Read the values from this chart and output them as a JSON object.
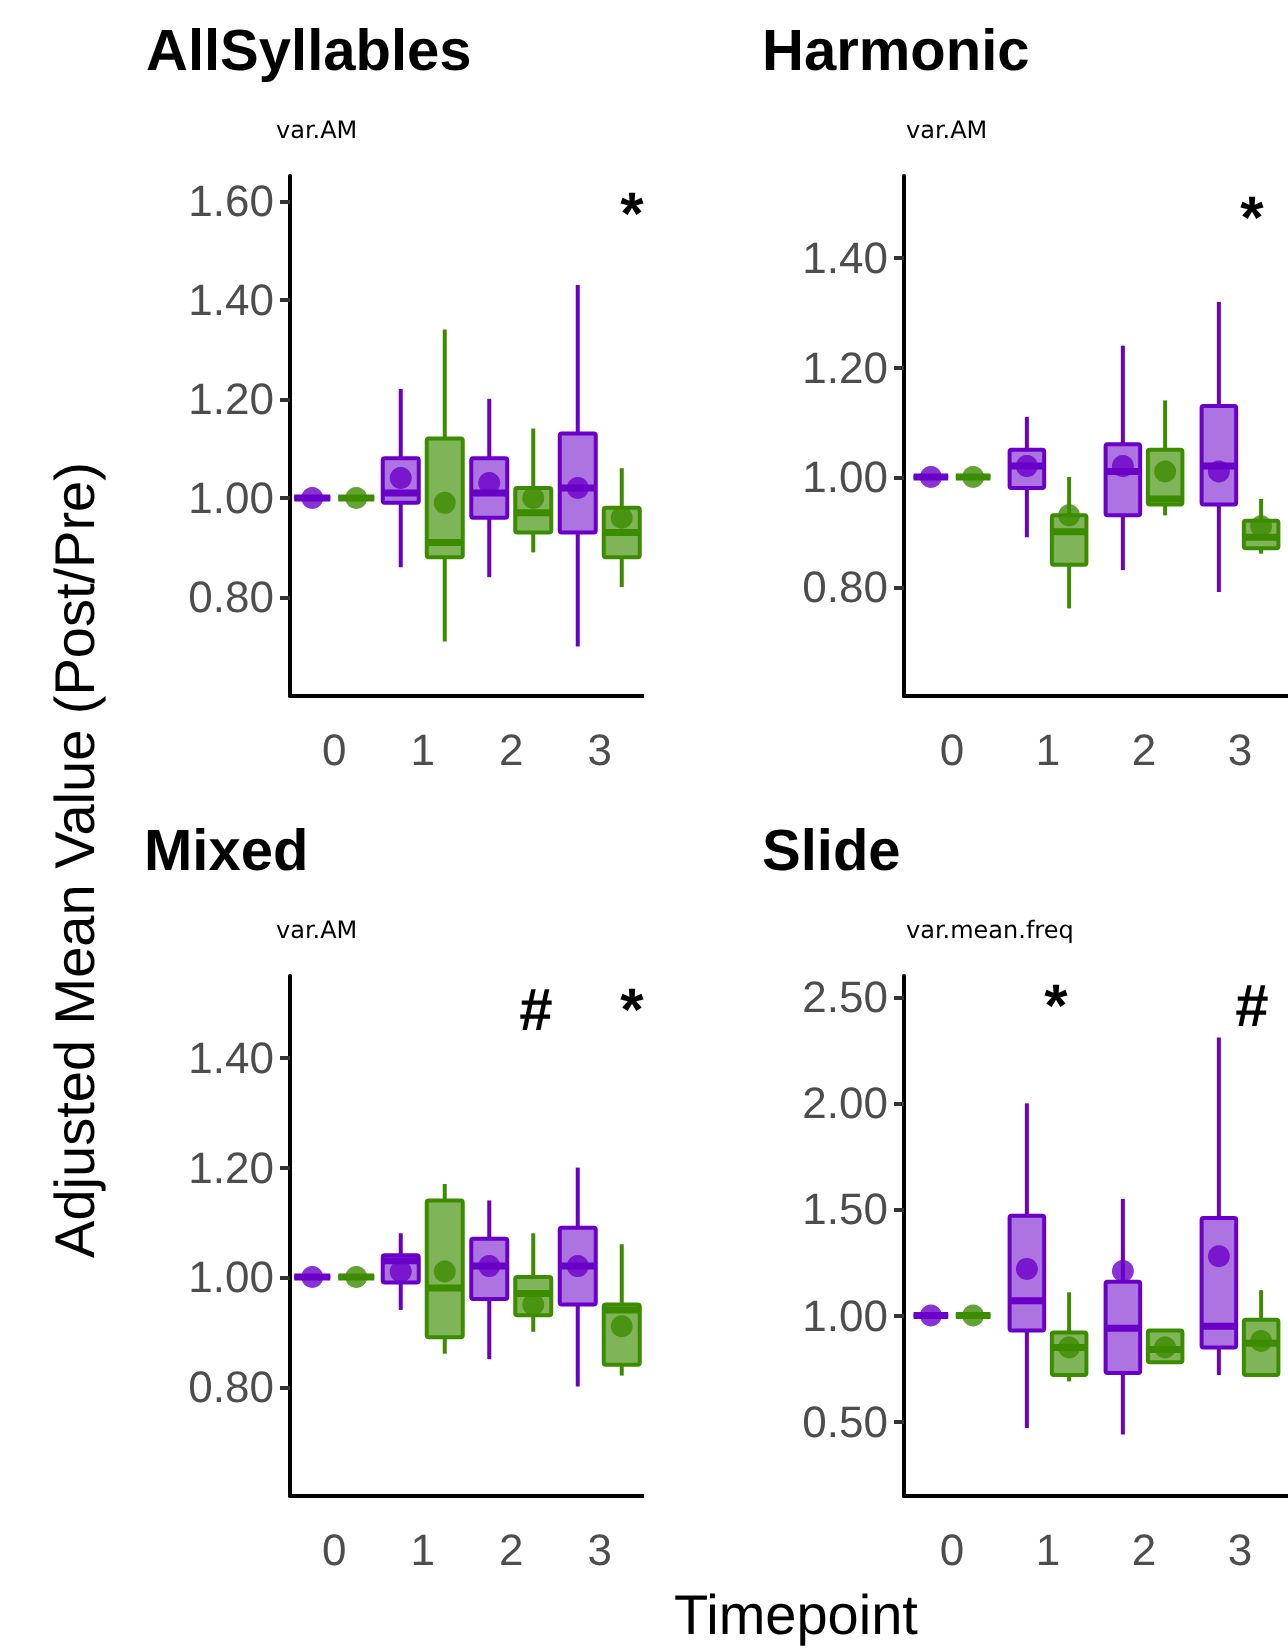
{
  "chart_data": [
    {
      "type": "box",
      "title": "AllSyllables",
      "subtitle": "var.AM",
      "ylabel": "Adjusted Mean Value (Post/Pre)",
      "categories": [
        "0",
        "1",
        "2",
        "3"
      ],
      "ylim": [
        0.6,
        1.65
      ],
      "yticks": [
        {
          "value": 0.8,
          "label": "0.80"
        },
        {
          "value": 1.0,
          "label": "1.00"
        },
        {
          "value": 1.2,
          "label": "1.20"
        },
        {
          "value": 1.4,
          "label": "1.40"
        },
        {
          "value": 1.6,
          "label": "1.60"
        }
      ],
      "grid": false,
      "series": [
        {
          "color": "#6a00c8",
          "boxes": [
            {
              "low": 1.0,
              "q1": 1.0,
              "median": 1.0,
              "q3": 1.0,
              "high": 1.0,
              "mean": 1.0
            },
            {
              "low": 0.86,
              "q1": 0.99,
              "median": 1.01,
              "q3": 1.08,
              "high": 1.22,
              "mean": 1.04
            },
            {
              "low": 0.84,
              "q1": 0.96,
              "median": 1.01,
              "q3": 1.08,
              "high": 1.2,
              "mean": 1.03
            },
            {
              "low": 0.7,
              "q1": 0.93,
              "median": 1.02,
              "q3": 1.13,
              "high": 1.43,
              "mean": 1.02
            }
          ]
        },
        {
          "color": "#3c8c00",
          "boxes": [
            {
              "low": 1.0,
              "q1": 1.0,
              "median": 1.0,
              "q3": 1.0,
              "high": 1.0,
              "mean": 1.0
            },
            {
              "low": 0.71,
              "q1": 0.88,
              "median": 0.91,
              "q3": 1.12,
              "high": 1.34,
              "mean": 0.99
            },
            {
              "low": 0.89,
              "q1": 0.93,
              "median": 0.97,
              "q3": 1.02,
              "high": 1.14,
              "mean": 1.0
            },
            {
              "low": 0.82,
              "q1": 0.88,
              "median": 0.93,
              "q3": 0.98,
              "high": 1.06,
              "mean": 0.96
            }
          ]
        }
      ],
      "annotations": [
        "*"
      ]
    },
    {
      "type": "box",
      "title": "Harmonic",
      "subtitle": "var.AM",
      "categories": [
        "0",
        "1",
        "2",
        "3"
      ],
      "ylim": [
        0.6,
        1.55
      ],
      "yticks": [
        {
          "value": 0.8,
          "label": "0.80"
        },
        {
          "value": 1.0,
          "label": "1.00"
        },
        {
          "value": 1.2,
          "label": "1.20"
        },
        {
          "value": 1.4,
          "label": "1.40"
        }
      ],
      "grid": false,
      "series": [
        {
          "color": "#6a00c8",
          "boxes": [
            {
              "low": 1.0,
              "q1": 1.0,
              "median": 1.0,
              "q3": 1.0,
              "high": 1.0,
              "mean": 1.0
            },
            {
              "low": 0.89,
              "q1": 0.98,
              "median": 1.02,
              "q3": 1.05,
              "high": 1.11,
              "mean": 1.02
            },
            {
              "low": 0.83,
              "q1": 0.93,
              "median": 1.01,
              "q3": 1.06,
              "high": 1.24,
              "mean": 1.02
            },
            {
              "low": 0.79,
              "q1": 0.95,
              "median": 1.02,
              "q3": 1.13,
              "high": 1.32,
              "mean": 1.01
            }
          ]
        },
        {
          "color": "#3c8c00",
          "boxes": [
            {
              "low": 1.0,
              "q1": 1.0,
              "median": 1.0,
              "q3": 1.0,
              "high": 1.0,
              "mean": 1.0
            },
            {
              "low": 0.76,
              "q1": 0.84,
              "median": 0.9,
              "q3": 0.93,
              "high": 1.0,
              "mean": 0.93
            },
            {
              "low": 0.93,
              "q1": 0.95,
              "median": 0.96,
              "q3": 1.05,
              "high": 1.14,
              "mean": 1.01
            },
            {
              "low": 0.86,
              "q1": 0.87,
              "median": 0.89,
              "q3": 0.92,
              "high": 0.96,
              "mean": 0.91
            }
          ]
        }
      ],
      "annotations": [
        "*"
      ]
    },
    {
      "type": "box",
      "title": "Mixed",
      "subtitle": "var.AM",
      "xlabel": "Timepoint",
      "categories": [
        "0",
        "1",
        "2",
        "3"
      ],
      "ylim": [
        0.6,
        1.55
      ],
      "yticks": [
        {
          "value": 0.8,
          "label": "0.80"
        },
        {
          "value": 1.0,
          "label": "1.00"
        },
        {
          "value": 1.2,
          "label": "1.20"
        },
        {
          "value": 1.4,
          "label": "1.40"
        }
      ],
      "grid": false,
      "series": [
        {
          "color": "#6a00c8",
          "boxes": [
            {
              "low": 1.0,
              "q1": 1.0,
              "median": 1.0,
              "q3": 1.0,
              "high": 1.0,
              "mean": 1.0
            },
            {
              "low": 0.94,
              "q1": 0.99,
              "median": 1.03,
              "q3": 1.04,
              "high": 1.08,
              "mean": 1.01
            },
            {
              "low": 0.85,
              "q1": 0.96,
              "median": 1.02,
              "q3": 1.07,
              "high": 1.14,
              "mean": 1.02
            },
            {
              "low": 0.8,
              "q1": 0.95,
              "median": 1.02,
              "q3": 1.09,
              "high": 1.2,
              "mean": 1.02
            }
          ]
        },
        {
          "color": "#3c8c00",
          "boxes": [
            {
              "low": 1.0,
              "q1": 1.0,
              "median": 1.0,
              "q3": 1.0,
              "high": 1.0,
              "mean": 1.0
            },
            {
              "low": 0.86,
              "q1": 0.89,
              "median": 0.98,
              "q3": 1.14,
              "high": 1.17,
              "mean": 1.01
            },
            {
              "low": 0.9,
              "q1": 0.93,
              "median": 0.97,
              "q3": 1.0,
              "high": 1.08,
              "mean": 0.95
            },
            {
              "low": 0.82,
              "q1": 0.84,
              "median": 0.94,
              "q3": 0.95,
              "high": 1.06,
              "mean": 0.91
            }
          ]
        }
      ],
      "annotations": [
        "#",
        "*"
      ]
    },
    {
      "type": "box",
      "title": "Slide",
      "subtitle": "var.mean.freq",
      "categories": [
        "0",
        "1",
        "2",
        "3"
      ],
      "ylim": [
        0.15,
        2.6
      ],
      "yticks": [
        {
          "value": 0.5,
          "label": "0.50"
        },
        {
          "value": 1.0,
          "label": "1.00"
        },
        {
          "value": 1.5,
          "label": "1.50"
        },
        {
          "value": 2.0,
          "label": "2.00"
        },
        {
          "value": 2.5,
          "label": "2.50"
        }
      ],
      "grid": false,
      "series": [
        {
          "color": "#6a00c8",
          "boxes": [
            {
              "low": 1.0,
              "q1": 1.0,
              "median": 1.0,
              "q3": 1.0,
              "high": 1.0,
              "mean": 1.0
            },
            {
              "low": 0.47,
              "q1": 0.93,
              "median": 1.07,
              "q3": 1.47,
              "high": 2.0,
              "mean": 1.22
            },
            {
              "low": 0.44,
              "q1": 0.73,
              "median": 0.94,
              "q3": 1.16,
              "high": 1.55,
              "mean": 1.21
            },
            {
              "low": 0.72,
              "q1": 0.85,
              "median": 0.95,
              "q3": 1.46,
              "high": 2.31,
              "mean": 1.28
            }
          ]
        },
        {
          "color": "#3c8c00",
          "boxes": [
            {
              "low": 1.0,
              "q1": 1.0,
              "median": 1.0,
              "q3": 1.0,
              "high": 1.0,
              "mean": 1.0
            },
            {
              "low": 0.69,
              "q1": 0.72,
              "median": 0.85,
              "q3": 0.92,
              "high": 1.11,
              "mean": 0.85
            },
            {
              "low": 0.78,
              "q1": 0.78,
              "median": 0.84,
              "q3": 0.93,
              "high": 0.93,
              "mean": 0.85
            },
            {
              "low": 0.72,
              "q1": 0.72,
              "median": 0.87,
              "q3": 0.98,
              "high": 1.12,
              "mean": 0.88
            }
          ]
        }
      ],
      "annotations": [
        "*",
        "#"
      ]
    }
  ]
}
